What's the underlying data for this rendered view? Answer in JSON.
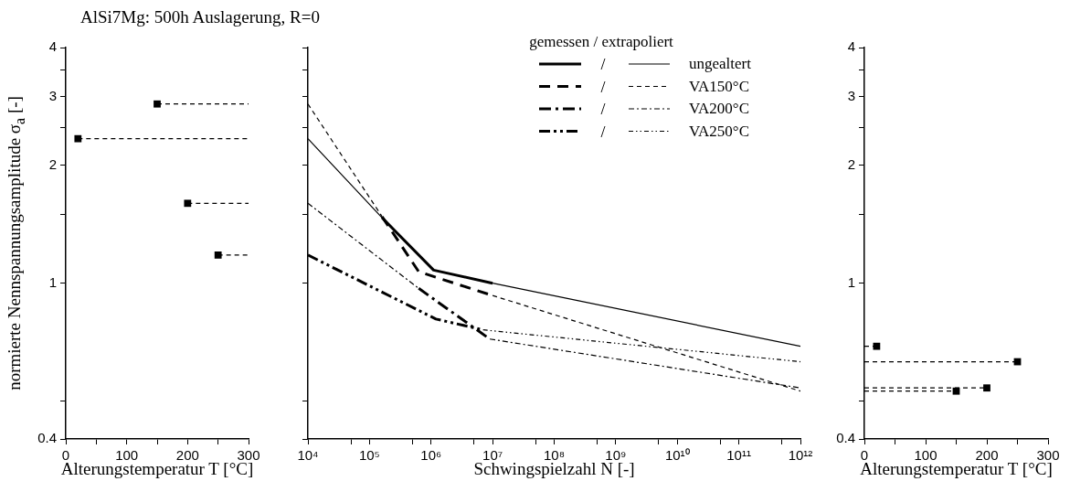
{
  "chart_data": [
    {
      "type": "scatter",
      "title": "AlSi7Mg: 500h Auslagerung, R=0",
      "xlabel": "Alterungstemperatur T [°C]",
      "ylabel": "normierte Nennspannungsamplitude σ$_{a}$ [-]",
      "log": "y",
      "grid": false,
      "xlim": [
        0,
        300
      ],
      "ylim": [
        0.4,
        4
      ],
      "xticks": [
        0,
        {
          "value": 50,
          "label": null
        },
        100,
        {
          "value": 150,
          "label": null
        },
        200,
        {
          "value": 250,
          "label": null
        },
        300
      ],
      "yticks": [
        0.4,
        {
          "value": 0.5,
          "label": null
        },
        1,
        {
          "value": 1.5,
          "label": null
        },
        2,
        {
          "value": 2.5,
          "label": null
        },
        3,
        {
          "value": 3.5,
          "label": null
        },
        4
      ],
      "series": [
        {
          "x": [
            20,
            150,
            200,
            250
          ],
          "values": [
            2.34,
            2.87,
            1.6,
            1.18
          ],
          "color": "#000000",
          "marker": "square"
        },
        {
          "type": "line",
          "x": [
            20,
            300
          ],
          "values": [
            2.34,
            2.34
          ],
          "color": "#000000",
          "line_style": "dashed"
        },
        {
          "type": "line",
          "x": [
            150,
            300
          ],
          "values": [
            2.87,
            2.87
          ],
          "color": "#000000",
          "line_style": "dashed"
        },
        {
          "type": "line",
          "x": [
            200,
            300
          ],
          "values": [
            1.6,
            1.6
          ],
          "color": "#000000",
          "line_style": "dashed"
        },
        {
          "type": "line",
          "x": [
            250,
            300
          ],
          "values": [
            1.18,
            1.18
          ],
          "color": "#000000",
          "line_style": "dashed"
        }
      ]
    },
    {
      "type": "line",
      "xlabel": "Schwingspielzahl N [-]",
      "legend_title": "gemessen / extrapoliert",
      "legend": "top right",
      "log": "xy",
      "grid": false,
      "tick_labels": "x",
      "xlim": [
        10000,
        1000000000000
      ],
      "ylim": [
        0.4,
        4
      ],
      "xticks": [
        {
          "value": 10000,
          "label": "10⁴"
        },
        {
          "value": 50000,
          "label": null
        },
        {
          "value": 100000,
          "label": "10⁵"
        },
        {
          "value": 500000,
          "label": null
        },
        {
          "value": 1000000,
          "label": "10⁶"
        },
        {
          "value": 5000000,
          "label": null
        },
        {
          "value": 10000000,
          "label": "10⁷"
        },
        {
          "value": 50000000,
          "label": null
        },
        {
          "value": 100000000,
          "label": "10⁸"
        },
        {
          "value": 500000000,
          "label": null
        },
        {
          "value": 1000000000,
          "label": "10⁹"
        },
        {
          "value": 5000000000,
          "label": null
        },
        {
          "value": 10000000000,
          "label": "10¹⁰"
        },
        {
          "value": 50000000000,
          "label": null
        },
        {
          "value": 100000000000,
          "label": "10¹¹"
        },
        {
          "value": 500000000000,
          "label": null
        },
        {
          "value": 1000000000000,
          "label": "10¹²"
        }
      ],
      "yticks": [
        0.4,
        {
          "value": 0.5,
          "label": null
        },
        1,
        {
          "value": 1.5,
          "label": null
        },
        2,
        {
          "value": 2.5,
          "label": null
        },
        3,
        {
          "value": 3.5,
          "label": null
        },
        4
      ],
      "series": [
        {
          "name": "ungealtert",
          "color": "#000000",
          "line_style": "solid",
          "x": [
            160000,
            1100000,
            10000000
          ],
          "values": [
            1.47,
            1.08,
            1.0
          ]
        },
        {
          "color": "#000000",
          "line_style": "solid",
          "x": [
            10000,
            160000,
            null,
            10000000,
            1000000000000
          ],
          "values": [
            2.34,
            1.47,
            null,
            1.0,
            0.69
          ]
        },
        {
          "name": "VA150°C",
          "color": "#000000",
          "line_style": "dashed",
          "x": [
            160000,
            630000,
            10000000
          ],
          "values": [
            1.48,
            1.07,
            0.93
          ]
        },
        {
          "color": "#000000",
          "line_style": "dashed",
          "x": [
            10000,
            160000,
            null,
            10000000,
            1000000000000
          ],
          "values": [
            2.87,
            1.48,
            null,
            0.93,
            0.53
          ]
        },
        {
          "name": "VA200°C",
          "color": "#000000",
          "line_style": "dashdot",
          "x": [
            630000,
            9000000
          ],
          "values": [
            0.97,
            0.72
          ]
        },
        {
          "color": "#000000",
          "line_style": "dashdot",
          "x": [
            10000,
            630000,
            null,
            9000000,
            1000000000000
          ],
          "values": [
            1.6,
            0.97,
            null,
            0.72,
            0.54
          ]
        },
        {
          "name": "VA250°C",
          "color": "#000000",
          "line_style": "dashdotdot",
          "x": [
            10000,
            1200000,
            7000000
          ],
          "values": [
            1.18,
            0.81,
            0.76
          ]
        },
        {
          "color": "#000000",
          "line_style": "dashdotdot",
          "x": [
            7000000,
            1000000000000
          ],
          "values": [
            0.76,
            0.63
          ]
        }
      ]
    },
    {
      "type": "scatter",
      "xlabel": "Alterungstemperatur T [°C]",
      "log": "y",
      "grid": false,
      "xlim": [
        0,
        300
      ],
      "ylim": [
        0.4,
        4
      ],
      "xticks": [
        0,
        {
          "value": 50,
          "label": null
        },
        100,
        {
          "value": 150,
          "label": null
        },
        200,
        {
          "value": 250,
          "label": null
        },
        300
      ],
      "yticks": [
        0.4,
        {
          "value": 0.5,
          "label": null
        },
        1,
        {
          "value": 1.5,
          "label": null
        },
        2,
        {
          "value": 2.5,
          "label": null
        },
        3,
        {
          "value": 3.5,
          "label": null
        },
        4
      ],
      "series": [
        {
          "x": [
            20,
            150,
            200,
            250
          ],
          "values": [
            0.69,
            0.53,
            0.54,
            0.63
          ],
          "color": "#000000",
          "marker": "square"
        },
        {
          "type": "line",
          "x": [
            0,
            20
          ],
          "values": [
            0.69,
            0.69
          ],
          "color": "#000000",
          "line_style": "dashed"
        },
        {
          "type": "line",
          "x": [
            0,
            150
          ],
          "values": [
            0.53,
            0.53
          ],
          "color": "#000000",
          "line_style": "dashed"
        },
        {
          "type": "line",
          "x": [
            0,
            200
          ],
          "values": [
            0.54,
            0.54
          ],
          "color": "#000000",
          "line_style": "dashed"
        },
        {
          "type": "line",
          "x": [
            0,
            250
          ],
          "values": [
            0.63,
            0.63
          ],
          "color": "#000000",
          "line_style": "dashed"
        }
      ]
    }
  ]
}
